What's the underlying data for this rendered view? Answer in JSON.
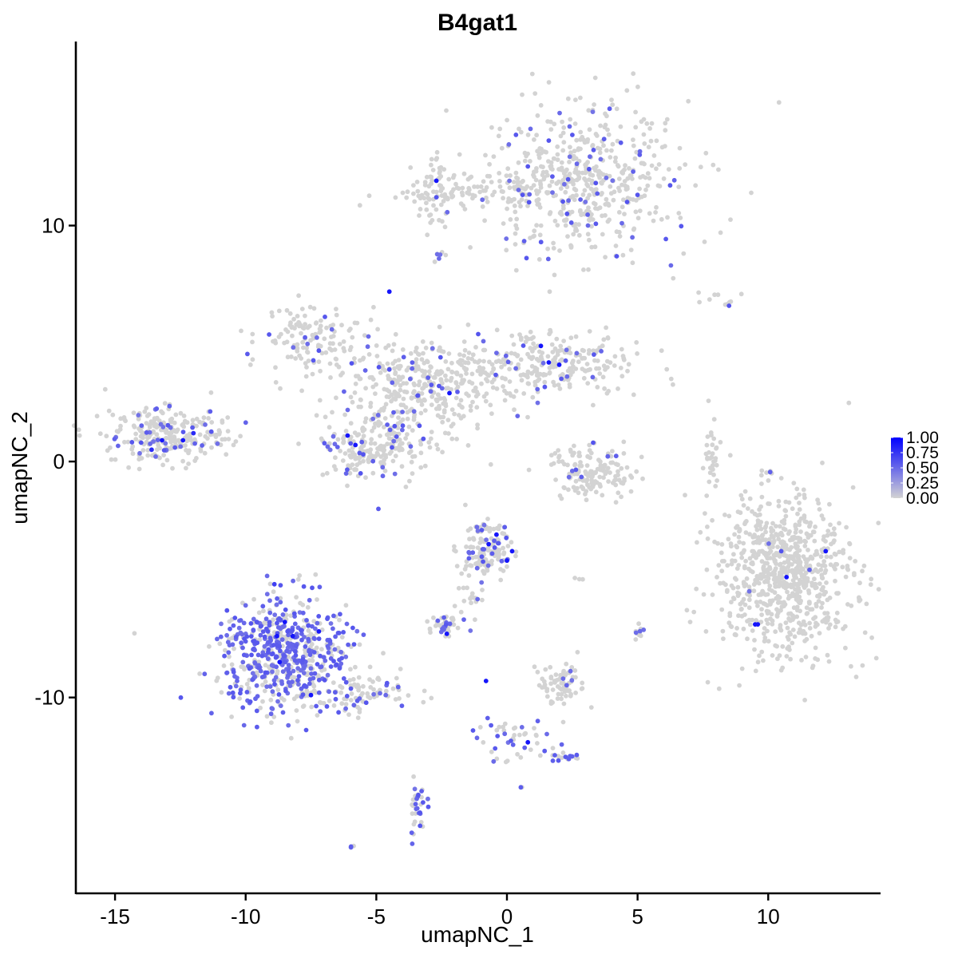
{
  "chart_data": {
    "type": "scatter",
    "title": "B4gat1",
    "xlabel": "umapNC_1",
    "ylabel": "umapNC_2",
    "xlim": [
      -16.5,
      14.3
    ],
    "ylim": [
      -18.3,
      17.8
    ],
    "x_ticks": [
      -15,
      -10,
      -5,
      0,
      5,
      10
    ],
    "x_tick_labels": [
      "-15",
      "-10",
      "-5",
      "0",
      "5",
      "10"
    ],
    "y_ticks": [
      -10,
      0,
      10
    ],
    "y_tick_labels": [
      "-10",
      "0",
      "10"
    ],
    "color_scale": {
      "low": "#D3D3D3",
      "high": "#0000FF",
      "range": [
        0,
        1
      ],
      "ticks": [
        1.0,
        0.75,
        0.5,
        0.25,
        0.0
      ],
      "tick_labels": [
        "1.00",
        "0.75",
        "0.50",
        "0.25",
        "0.00"
      ],
      "legend_position": "right"
    },
    "grid": false,
    "clusters": [
      {
        "id": "c-top-right",
        "cx": 2.8,
        "cy": 12.0,
        "sx": 2.0,
        "sy": 1.6,
        "n": 520,
        "frac_expr": 0.08,
        "expressing": [
          [
            0.9,
            14.1,
            0.5
          ],
          [
            1.6,
            13.6,
            0.6
          ],
          [
            2.4,
            14.2,
            0.5
          ],
          [
            3.4,
            11.8,
            0.6
          ],
          [
            4.6,
            11.0,
            0.6
          ],
          [
            5.0,
            11.3,
            0.6
          ],
          [
            4.8,
            9.5,
            0.5
          ],
          [
            4.2,
            8.7,
            0.6
          ],
          [
            4.4,
            10.1,
            0.5
          ],
          [
            3.1,
            10.0,
            0.5
          ],
          [
            2.3,
            10.5,
            0.6
          ],
          [
            0.6,
            11.3,
            0.6
          ],
          [
            -2.7,
            11.2,
            0.6
          ],
          [
            -2.7,
            11.9,
            0.9
          ],
          [
            -2.6,
            8.6,
            0.5
          ]
        ]
      },
      {
        "id": "c-bridge",
        "cx": -0.6,
        "cy": 11.4,
        "sx": 1.7,
        "sy": 0.35,
        "n": 90,
        "frac_expr": 0.0,
        "expressing": []
      },
      {
        "id": "c-top-left-arm",
        "cx": -2.8,
        "cy": 11.4,
        "sx": 0.4,
        "sy": 0.8,
        "n": 60,
        "frac_expr": 0.0,
        "expressing": []
      },
      {
        "id": "c-center-hub",
        "cx": -3.2,
        "cy": 3.2,
        "sx": 1.5,
        "sy": 1.0,
        "n": 340,
        "frac_expr": 0.05,
        "expressing": [
          [
            -4.5,
            7.2,
            0.9
          ],
          [
            -2.2,
            2.9,
            0.9
          ],
          [
            -4.9,
            4.0,
            0.6
          ],
          [
            -4.5,
            3.9,
            0.6
          ],
          [
            -3.7,
            3.5,
            0.5
          ],
          [
            -2.6,
            3.2,
            0.6
          ],
          [
            -3.4,
            2.8,
            0.5
          ]
        ]
      },
      {
        "id": "c-center-upperleft",
        "cx": -7.5,
        "cy": 5.2,
        "sx": 1.0,
        "sy": 0.7,
        "n": 130,
        "frac_expr": 0.05,
        "expressing": [
          [
            -7.2,
            4.7,
            0.6
          ],
          [
            -6.7,
            5.6,
            0.5
          ],
          [
            -5.3,
            5.3,
            0.5
          ]
        ]
      },
      {
        "id": "c-center-right",
        "cx": 1.4,
        "cy": 4.2,
        "sx": 1.8,
        "sy": 0.7,
        "n": 260,
        "frac_expr": 0.05,
        "expressing": [
          [
            1.3,
            4.9,
            0.9
          ],
          [
            1.6,
            4.2,
            0.9
          ],
          [
            2.0,
            4.1,
            0.9
          ],
          [
            -1.1,
            5.4,
            0.6
          ],
          [
            -0.9,
            5.1,
            0.5
          ],
          [
            -0.4,
            4.6,
            0.5
          ],
          [
            2.3,
            3.6,
            0.5
          ]
        ]
      },
      {
        "id": "c-center-bottom",
        "cx": -5.0,
        "cy": 0.7,
        "sx": 1.1,
        "sy": 0.8,
        "n": 210,
        "frac_expr": 0.12,
        "expressing": [
          [
            -6.1,
            1.1,
            0.9
          ],
          [
            -5.8,
            0.7,
            0.9
          ],
          [
            -5.5,
            0.3,
            0.6
          ],
          [
            -4.4,
            0.6,
            0.6
          ],
          [
            -5.6,
            -0.5,
            0.6
          ],
          [
            -4.3,
            1.5,
            0.6
          ],
          [
            -4.0,
            2.1,
            0.5
          ]
        ]
      },
      {
        "id": "c-left",
        "cx": -13.0,
        "cy": 1.1,
        "sx": 1.2,
        "sy": 0.55,
        "n": 260,
        "frac_expr": 0.12,
        "expressing": [
          [
            -13.2,
            0.9,
            0.9
          ],
          [
            -12.4,
            0.9,
            0.9
          ],
          [
            -13.6,
            0.5,
            0.8
          ],
          [
            -12.0,
            1.2,
            0.8
          ],
          [
            -14.0,
            0.8,
            0.6
          ]
        ]
      },
      {
        "id": "c-arc",
        "cx": 3.3,
        "cy": -0.5,
        "sx": 0.8,
        "sy": 0.55,
        "n": 150,
        "frac_expr": 0.03,
        "expressing": [
          [
            3.3,
            0.8,
            0.6
          ],
          [
            2.5,
            -0.4,
            0.5
          ]
        ]
      },
      {
        "id": "c-thin-right",
        "cx": 7.8,
        "cy": 0.3,
        "sx": 0.15,
        "sy": 0.6,
        "n": 30,
        "frac_expr": 0.0,
        "expressing": []
      },
      {
        "id": "c-big-right",
        "cx": 10.6,
        "cy": -4.8,
        "sx": 1.3,
        "sy": 1.7,
        "n": 800,
        "frac_expr": 0.002,
        "expressing": [
          [
            12.2,
            -3.8,
            0.9
          ],
          [
            10.7,
            -4.9,
            0.9
          ],
          [
            9.5,
            -6.9,
            0.9
          ],
          [
            9.6,
            -6.9,
            0.9
          ],
          [
            10.5,
            -3.8,
            0.6
          ]
        ]
      },
      {
        "id": "c-lower-left",
        "cx": -8.5,
        "cy": -8.2,
        "sx": 1.2,
        "sy": 1.2,
        "n": 620,
        "frac_expr": 0.55,
        "expressing": [
          [
            -8.5,
            -6.8,
            0.9
          ],
          [
            -8.2,
            -7.4,
            0.9
          ],
          [
            -8.7,
            -8.5,
            0.9
          ],
          [
            -8.8,
            -7.4,
            0.9
          ],
          [
            -7.5,
            -9.9,
            0.9
          ],
          [
            -7.2,
            -7.2,
            0.9
          ],
          [
            -8.9,
            -5.2,
            0.7
          ]
        ]
      },
      {
        "id": "c-lower-left-tail",
        "cx": -5.6,
        "cy": -9.8,
        "sx": 1.1,
        "sy": 0.4,
        "n": 80,
        "frac_expr": 0.2,
        "expressing": []
      },
      {
        "id": "c-mid-bottom",
        "cx": -0.7,
        "cy": -3.8,
        "sx": 0.45,
        "sy": 0.55,
        "n": 130,
        "frac_expr": 0.15,
        "expressing": [
          [
            -0.4,
            -3.1,
            0.9
          ],
          [
            -0.7,
            -3.5,
            0.9
          ],
          [
            0.2,
            -3.8,
            0.9
          ],
          [
            0.0,
            -4.2,
            0.9
          ]
        ]
      },
      {
        "id": "c-small-1",
        "cx": -2.4,
        "cy": -6.9,
        "sx": 0.3,
        "sy": 0.2,
        "n": 40,
        "frac_expr": 0.3,
        "expressing": [
          [
            -2.3,
            -7.3,
            0.9
          ]
        ]
      },
      {
        "id": "c-small-2",
        "cx": 2.1,
        "cy": -9.4,
        "sx": 0.5,
        "sy": 0.4,
        "n": 70,
        "frac_expr": 0.04,
        "expressing": []
      },
      {
        "id": "c-small-3",
        "cx": 5.0,
        "cy": -7.3,
        "sx": 0.12,
        "sy": 0.12,
        "n": 14,
        "frac_expr": 0.4,
        "expressing": []
      },
      {
        "id": "c-small-4",
        "cx": -3.4,
        "cy": -14.5,
        "sx": 0.2,
        "sy": 0.5,
        "n": 35,
        "frac_expr": 0.5,
        "expressing": []
      },
      {
        "id": "c-tail-1",
        "cx": -1.5,
        "cy": -5.5,
        "sx": 0.25,
        "sy": 0.9,
        "n": 30,
        "frac_expr": 0.3,
        "expressing": []
      },
      {
        "id": "c-strand",
        "cx": 0.3,
        "cy": -11.8,
        "sx": 0.8,
        "sy": 0.6,
        "n": 45,
        "frac_expr": 0.2,
        "expressing": [
          [
            -0.8,
            -9.3,
            0.9
          ],
          [
            0.8,
            -11.9,
            0.9
          ]
        ]
      },
      {
        "id": "c-strand-right",
        "cx": 2.2,
        "cy": -12.5,
        "sx": 0.3,
        "sy": 0.15,
        "n": 18,
        "frac_expr": 0.5,
        "expressing": []
      },
      {
        "id": "c-outlier-a",
        "cx": 8.3,
        "cy": 6.8,
        "sx": 0.8,
        "sy": 0.2,
        "n": 10,
        "frac_expr": 0.1,
        "expressing": [
          [
            8.5,
            6.6,
            0.6
          ]
        ]
      },
      {
        "id": "c-outlier-b",
        "cx": -2.6,
        "cy": 8.8,
        "sx": 0.1,
        "sy": 0.2,
        "n": 6,
        "frac_expr": 0.2,
        "expressing": []
      },
      {
        "id": "c-outlier-c",
        "cx": -5.9,
        "cy": -16.3,
        "sx": 0.05,
        "sy": 0.05,
        "n": 3,
        "frac_expr": 0.6,
        "expressing": []
      },
      {
        "id": "c-outlier-d",
        "cx": 0.6,
        "cy": -13.8,
        "sx": 0.05,
        "sy": 0.05,
        "n": 2,
        "frac_expr": 0.5,
        "expressing": []
      },
      {
        "id": "c-outlier-e",
        "cx": 2.8,
        "cy": -5.0,
        "sx": 0.1,
        "sy": 0.05,
        "n": 3,
        "frac_expr": 0.3,
        "expressing": []
      }
    ]
  }
}
